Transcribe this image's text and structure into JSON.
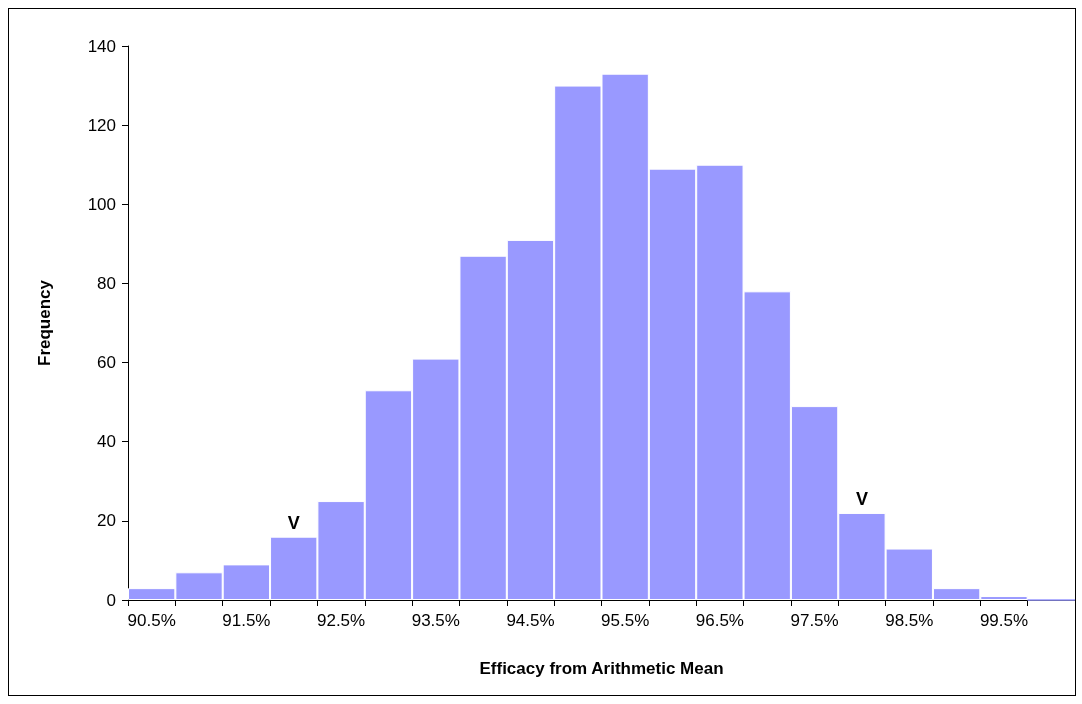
{
  "chart_data": {
    "type": "bar",
    "xlabel": "Efficacy from Arithmetic Mean",
    "ylabel": "Frequency",
    "color": "#9999ff",
    "categories": [
      "90.5%",
      null,
      "91.5%",
      null,
      "92.5%",
      null,
      "93.5%",
      null,
      "94.5%",
      null,
      "95.5%",
      null,
      "96.5%",
      null,
      "97.5%",
      null,
      "98.5%",
      null,
      "99.5%",
      null
    ],
    "values": [
      3,
      7,
      9,
      16,
      25,
      53,
      61,
      87,
      91,
      130,
      133,
      109,
      110,
      78,
      49,
      22,
      13,
      3,
      1,
      0
    ],
    "value_labels": [
      null,
      null,
      null,
      "V",
      null,
      null,
      null,
      null,
      null,
      null,
      null,
      null,
      null,
      null,
      null,
      "V",
      null,
      null,
      null,
      null
    ],
    "ylim": [
      0,
      140
    ],
    "yticks": [
      0,
      20,
      40,
      60,
      80,
      100,
      120,
      140
    ],
    "grid": false
  }
}
